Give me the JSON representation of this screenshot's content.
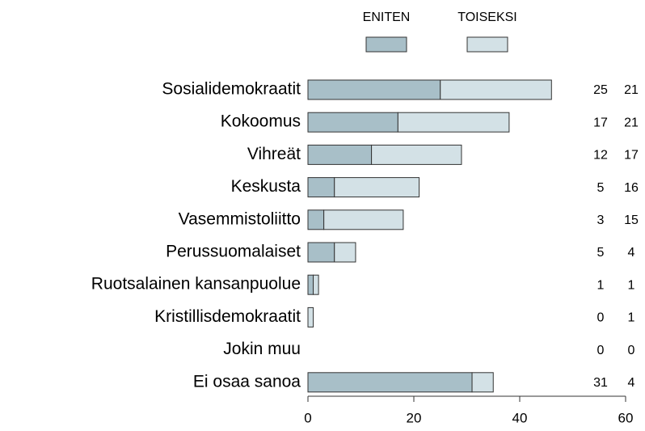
{
  "chart_data": {
    "type": "stacked-bar-horizontal",
    "categories": [
      "Sosialidemokraatit",
      "Kokoomus",
      "Vihreät",
      "Keskusta",
      "Vasemmistoliitto",
      "Perussuomalaiset",
      "Ruotsalainen kansanpuolue",
      "Kristillisdemokraatit",
      "Jokin muu",
      "Ei osaa sanoa"
    ],
    "series": [
      {
        "name": "ENITEN",
        "color": "#a8bfc8",
        "values": [
          25,
          17,
          12,
          5,
          3,
          5,
          1,
          0,
          0,
          31
        ]
      },
      {
        "name": "TOISEKSI",
        "color": "#d3e1e6",
        "values": [
          21,
          21,
          17,
          16,
          15,
          4,
          1,
          1,
          0,
          4
        ]
      }
    ],
    "xlim": [
      0,
      60
    ],
    "xticks": [
      0,
      20,
      40,
      60
    ],
    "legend": "top"
  }
}
